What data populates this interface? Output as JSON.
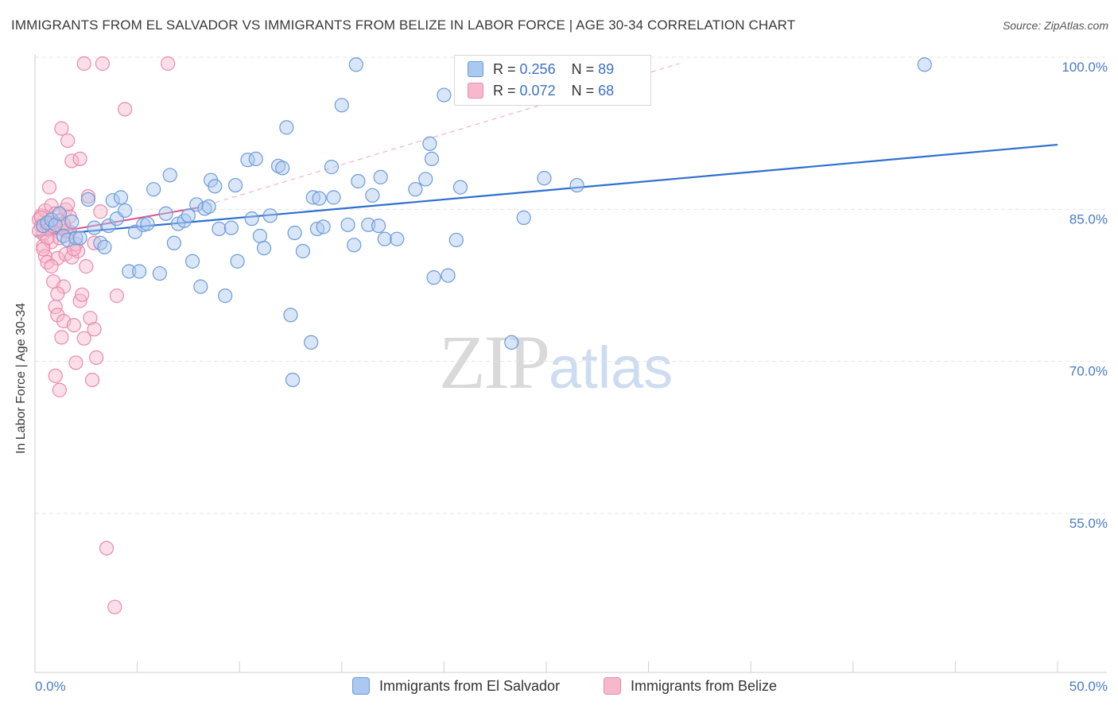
{
  "header": {
    "title": "IMMIGRANTS FROM EL SALVADOR VS IMMIGRANTS FROM BELIZE IN LABOR FORCE | AGE 30-34 CORRELATION CHART",
    "source": "Source: ZipAtlas.com"
  },
  "watermark": {
    "zip": "ZIP",
    "atlas": "atlas"
  },
  "legend": {
    "rows": [
      {
        "r_label": "R = ",
        "r_value": "0.256",
        "n_label": "N = ",
        "n_value": "89"
      },
      {
        "r_label": "R = ",
        "r_value": "0.072",
        "n_label": "N = ",
        "n_value": "68"
      }
    ]
  },
  "colors": {
    "blue_fill": "#aac8f0",
    "blue_stroke": "#6b9bd8",
    "blue_line": "#2e6fcf",
    "pink_fill": "#f7b8cc",
    "pink_stroke": "#e98aab",
    "pink_line": "#e0558a",
    "grid": "#e4e4e4",
    "tick_label": "#4a7cc4"
  },
  "chart_data": {
    "type": "scatter",
    "title": "IMMIGRANTS FROM EL SALVADOR VS IMMIGRANTS FROM BELIZE IN LABOR FORCE | AGE 30-34 CORRELATION CHART",
    "xlabel": "",
    "ylabel": "In Labor Force | Age 30-34",
    "xlim": [
      0,
      50
    ],
    "ylim": [
      40,
      102
    ],
    "x_tick_labels": [
      "0.0%",
      "50.0%"
    ],
    "y_ticks": [
      55,
      70,
      85,
      100
    ],
    "y_tick_labels": [
      "55.0%",
      "70.0%",
      "85.0%",
      "100.0%"
    ],
    "grid": true,
    "legend_position": "top-center",
    "series": [
      {
        "name": "Immigrants from El Salvador",
        "color": "#aac8f0",
        "r": 0.256,
        "n": 89,
        "trend": {
          "x": [
            0,
            50
          ],
          "y": [
            83.0,
            92.0
          ],
          "style": "solid"
        },
        "points": [
          [
            0.4,
            84.0
          ],
          [
            0.6,
            84.3
          ],
          [
            0.8,
            84.6
          ],
          [
            1.0,
            84.1
          ],
          [
            1.2,
            85.2
          ],
          [
            1.4,
            83.0
          ],
          [
            1.6,
            82.6
          ],
          [
            1.8,
            84.4
          ],
          [
            2.0,
            82.8
          ],
          [
            2.2,
            82.8
          ],
          [
            2.6,
            86.6
          ],
          [
            2.9,
            83.8
          ],
          [
            3.2,
            82.3
          ],
          [
            3.4,
            81.9
          ],
          [
            3.6,
            84.0
          ],
          [
            3.8,
            86.5
          ],
          [
            4.0,
            84.7
          ],
          [
            4.2,
            86.8
          ],
          [
            4.4,
            85.5
          ],
          [
            4.6,
            79.5
          ],
          [
            4.9,
            83.4
          ],
          [
            5.1,
            79.5
          ],
          [
            5.3,
            84.1
          ],
          [
            5.5,
            84.2
          ],
          [
            5.8,
            87.6
          ],
          [
            6.1,
            79.3
          ],
          [
            6.4,
            85.2
          ],
          [
            6.6,
            89.0
          ],
          [
            6.8,
            82.3
          ],
          [
            7.0,
            84.2
          ],
          [
            7.3,
            84.5
          ],
          [
            7.5,
            85.0
          ],
          [
            7.7,
            80.5
          ],
          [
            7.9,
            86.1
          ],
          [
            8.1,
            78.0
          ],
          [
            8.3,
            85.7
          ],
          [
            8.6,
            88.5
          ],
          [
            8.8,
            87.9
          ],
          [
            9.0,
            83.7
          ],
          [
            9.3,
            77.1
          ],
          [
            9.6,
            83.8
          ],
          [
            9.8,
            88.0
          ],
          [
            9.9,
            80.5
          ],
          [
            10.4,
            90.5
          ],
          [
            10.6,
            84.7
          ],
          [
            10.8,
            90.6
          ],
          [
            11.0,
            83.0
          ],
          [
            11.2,
            81.8
          ],
          [
            11.5,
            85.0
          ],
          [
            11.9,
            89.9
          ],
          [
            12.1,
            89.7
          ],
          [
            12.3,
            93.7
          ],
          [
            12.5,
            75.2
          ],
          [
            12.6,
            68.8
          ],
          [
            12.7,
            83.3
          ],
          [
            13.1,
            81.5
          ],
          [
            13.5,
            72.5
          ],
          [
            13.6,
            86.8
          ],
          [
            13.8,
            83.7
          ],
          [
            13.9,
            86.7
          ],
          [
            14.1,
            83.9
          ],
          [
            14.5,
            89.8
          ],
          [
            14.6,
            86.8
          ],
          [
            15.0,
            95.9
          ],
          [
            15.3,
            84.1
          ],
          [
            15.6,
            82.1
          ],
          [
            15.7,
            99.9
          ],
          [
            15.8,
            88.4
          ],
          [
            16.3,
            84.1
          ],
          [
            16.5,
            87.0
          ],
          [
            16.8,
            84.0
          ],
          [
            16.9,
            88.8
          ],
          [
            17.1,
            82.7
          ],
          [
            17.7,
            82.7
          ],
          [
            18.6,
            87.6
          ],
          [
            19.1,
            88.6
          ],
          [
            19.3,
            92.1
          ],
          [
            19.4,
            90.6
          ],
          [
            19.5,
            78.9
          ],
          [
            20.0,
            96.9
          ],
          [
            20.2,
            79.1
          ],
          [
            20.6,
            82.6
          ],
          [
            20.8,
            87.8
          ],
          [
            23.3,
            72.5
          ],
          [
            23.9,
            84.8
          ],
          [
            24.9,
            88.7
          ],
          [
            43.5,
            99.9
          ],
          [
            26.5,
            88.0
          ],
          [
            8.5,
            85.9
          ]
        ]
      },
      {
        "name": "Immigrants from Belize",
        "color": "#f7b8cc",
        "r": 0.072,
        "n": 68,
        "trend": {
          "x": [
            0,
            8
          ],
          "y": [
            83.0,
            85.8
          ],
          "style": "solid",
          "extended": {
            "x": [
              8,
              31.5
            ],
            "y": [
              85.8,
              100.0
            ],
            "style": "dashed"
          }
        },
        "points": [
          [
            0.2,
            84.6
          ],
          [
            0.3,
            85.0
          ],
          [
            0.3,
            84.0
          ],
          [
            0.4,
            83.2
          ],
          [
            0.4,
            82.0
          ],
          [
            0.5,
            81.0
          ],
          [
            0.5,
            85.5
          ],
          [
            0.6,
            84.0
          ],
          [
            0.6,
            80.4
          ],
          [
            0.7,
            83.6
          ],
          [
            0.7,
            87.8
          ],
          [
            0.8,
            86.0
          ],
          [
            0.8,
            82.4
          ],
          [
            0.9,
            84.3
          ],
          [
            0.9,
            78.5
          ],
          [
            1.0,
            85.2
          ],
          [
            1.0,
            76.0
          ],
          [
            1.1,
            80.8
          ],
          [
            1.1,
            75.2
          ],
          [
            1.2,
            84.5
          ],
          [
            1.2,
            82.8
          ],
          [
            1.3,
            83.8
          ],
          [
            1.3,
            73.0
          ],
          [
            1.4,
            78.0
          ],
          [
            1.4,
            74.6
          ],
          [
            1.5,
            85.6
          ],
          [
            1.5,
            81.2
          ],
          [
            1.6,
            86.1
          ],
          [
            1.7,
            83.4
          ],
          [
            1.8,
            80.9
          ],
          [
            1.9,
            74.2
          ],
          [
            2.0,
            70.5
          ],
          [
            2.1,
            81.5
          ],
          [
            2.2,
            76.6
          ],
          [
            2.3,
            77.2
          ],
          [
            2.4,
            72.9
          ],
          [
            2.5,
            80.0
          ],
          [
            2.6,
            86.9
          ],
          [
            2.7,
            74.9
          ],
          [
            2.8,
            68.8
          ],
          [
            2.9,
            73.8
          ],
          [
            3.0,
            71.0
          ],
          [
            1.3,
            93.6
          ],
          [
            1.6,
            92.4
          ],
          [
            1.8,
            90.4
          ],
          [
            2.4,
            100.0
          ],
          [
            3.3,
            100.0
          ],
          [
            2.2,
            90.6
          ],
          [
            3.5,
            52.2
          ],
          [
            3.9,
            46.4
          ],
          [
            6.5,
            100.0
          ],
          [
            4.4,
            95.5
          ],
          [
            1.2,
            67.8
          ],
          [
            0.6,
            82.8
          ],
          [
            1.0,
            69.2
          ],
          [
            1.5,
            83.5
          ],
          [
            1.7,
            84.9
          ],
          [
            2.0,
            82.2
          ],
          [
            0.8,
            80.0
          ],
          [
            1.1,
            77.3
          ],
          [
            0.4,
            81.7
          ],
          [
            3.2,
            85.4
          ],
          [
            0.2,
            83.5
          ],
          [
            0.3,
            84.8
          ],
          [
            2.9,
            82.3
          ],
          [
            1.4,
            84.2
          ],
          [
            4.0,
            77.1
          ],
          [
            1.9,
            81.7
          ]
        ]
      }
    ]
  },
  "bottom_legend": {
    "items": [
      "Immigrants from El Salvador",
      "Immigrants from Belize"
    ]
  },
  "axis": {
    "ylabel": "In Labor Force | Age 30-34",
    "x_left": "0.0%",
    "x_right": "50.0%"
  }
}
